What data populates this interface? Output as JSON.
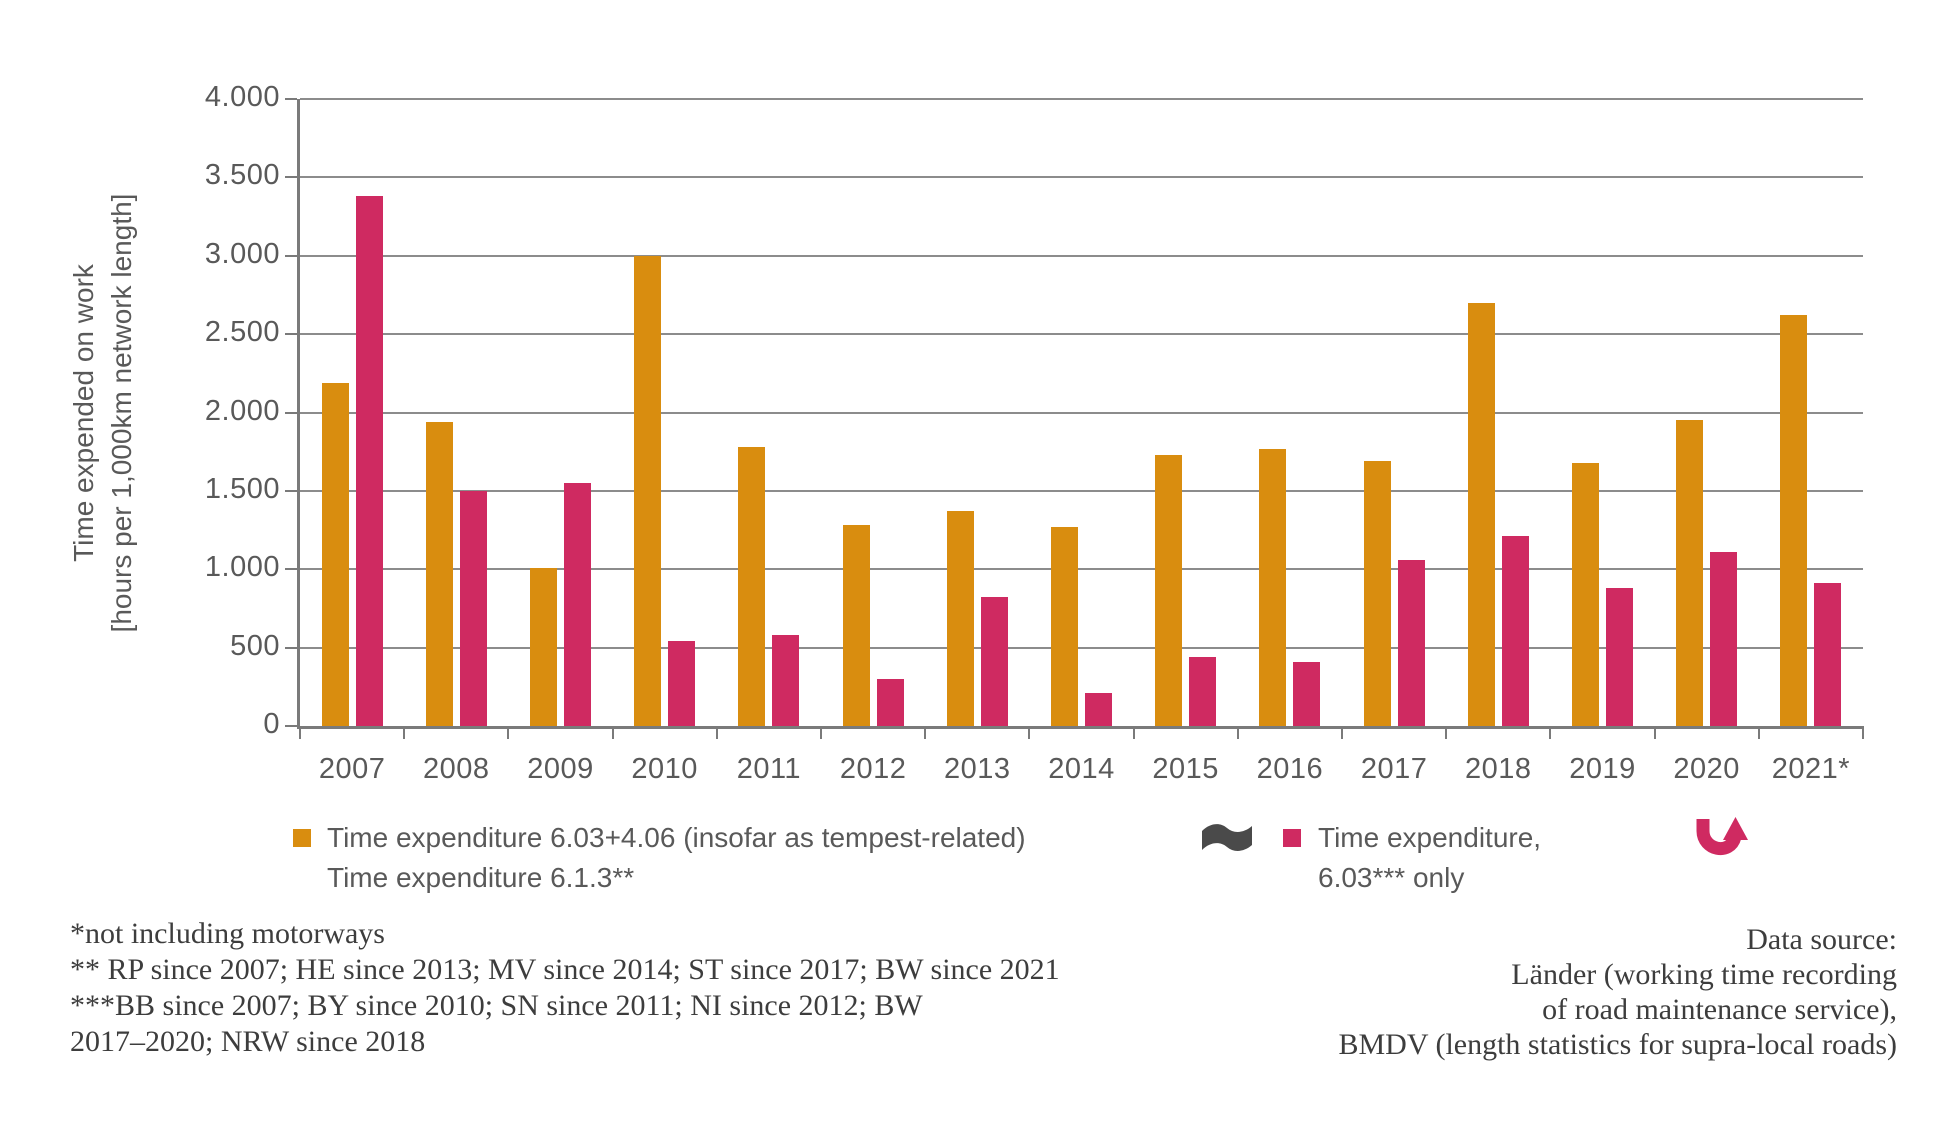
{
  "chart_data": {
    "type": "bar",
    "title": "",
    "categories": [
      "2007",
      "2008",
      "2009",
      "2010",
      "2011",
      "2012",
      "2013",
      "2014",
      "2015",
      "2016",
      "2017",
      "2018",
      "2019",
      "2020",
      "2021*"
    ],
    "series": [
      {
        "name": "Time expenditure 6.03+4.06 (insofar as tempest-related) Time expenditure 6.1.3**",
        "color": "#d98d0f",
        "values": [
          2190,
          1940,
          1010,
          3000,
          1780,
          1280,
          1370,
          1270,
          1730,
          1770,
          1690,
          2700,
          1680,
          1950,
          2620
        ]
      },
      {
        "name": "Time expenditure, 6.03*** only",
        "color": "#cf2a61",
        "values": [
          3380,
          1500,
          1550,
          540,
          580,
          300,
          820,
          210,
          440,
          410,
          1060,
          1210,
          880,
          1110,
          910
        ]
      }
    ],
    "ylabel_line1": "Time expended on work",
    "ylabel_line2": "[hours per 1,000km network length]",
    "ylim": [
      0,
      4000
    ],
    "ytick_step": 500,
    "ytick_labels": [
      "0",
      "500",
      "1.000",
      "1.500",
      "2.000",
      "2.500",
      "3.000",
      "3.500",
      "4.000"
    ],
    "grid": true,
    "legend_position": "bottom"
  },
  "legend": {
    "item1_line1": "Time expenditure 6.03+4.06 (insofar as tempest-related)",
    "item1_line2": "Time expenditure 6.1.3**",
    "item2_line1": "Time expenditure,",
    "item2_line2": "6.03*** only",
    "flag_icon": "wave-flag",
    "arrow_icon": "curved-up-arrow"
  },
  "footnotes": {
    "line1": "*not including motorways",
    "line2": "** RP since 2007; HE since 2013; MV since 2014; ST since 2017; BW since 2021",
    "line3": "***BB since 2007; BY since 2010; SN since 2011; NI since 2012; BW",
    "line4": "2017–2020; NRW since 2018"
  },
  "data_source": {
    "line1": "Data source:",
    "line2": "Länder (working time recording",
    "line3": "of road maintenance service),",
    "line4": "BMDV (length statistics for supra-local roads)"
  },
  "colors": {
    "orange": "#d98d0f",
    "pink": "#cf2a61",
    "gridline": "#8c8c8c",
    "axis": "#7a7a7a",
    "label_gray": "#595959",
    "note_gray": "#3d3d3d",
    "flag_gray": "#4a4a4a"
  }
}
